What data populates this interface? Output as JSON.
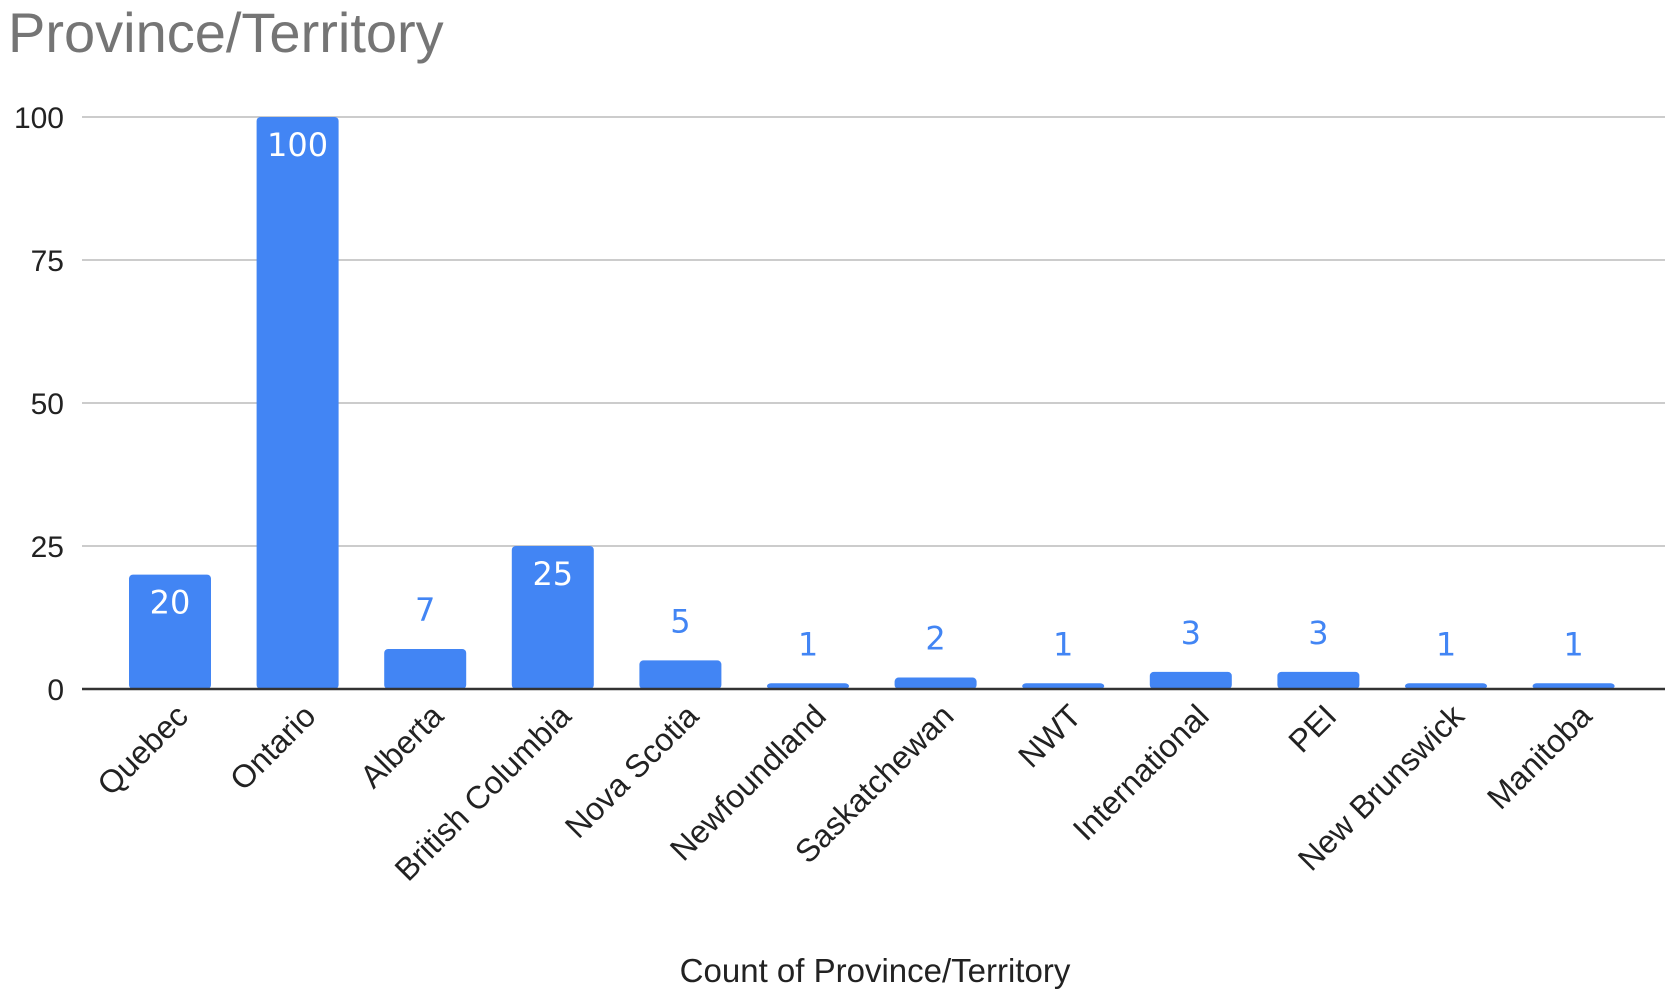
{
  "chart_data": {
    "type": "bar",
    "title": "Province/Territory",
    "xlabel": "Count of Province/Territory",
    "ylabel": "",
    "categories": [
      "Quebec",
      "Ontario",
      "Alberta",
      "British Columbia",
      "Nova Scotia",
      "Newfoundland",
      "Saskatchewan",
      "NWT",
      "International",
      "PEI",
      "New Brunswick",
      "Manitoba"
    ],
    "values": [
      20,
      100,
      7,
      25,
      5,
      1,
      2,
      1,
      3,
      3,
      1,
      1
    ],
    "ylim": [
      0,
      100
    ],
    "yticks": [
      0,
      25,
      50,
      75,
      100
    ],
    "grid": true,
    "legend": "none",
    "colors": {
      "bar": "#4285f4",
      "label_inside": "#ffffff",
      "label_outside": "#4285f4",
      "grid": "#cccccc",
      "axis": "#333333",
      "title": "#757575"
    }
  }
}
